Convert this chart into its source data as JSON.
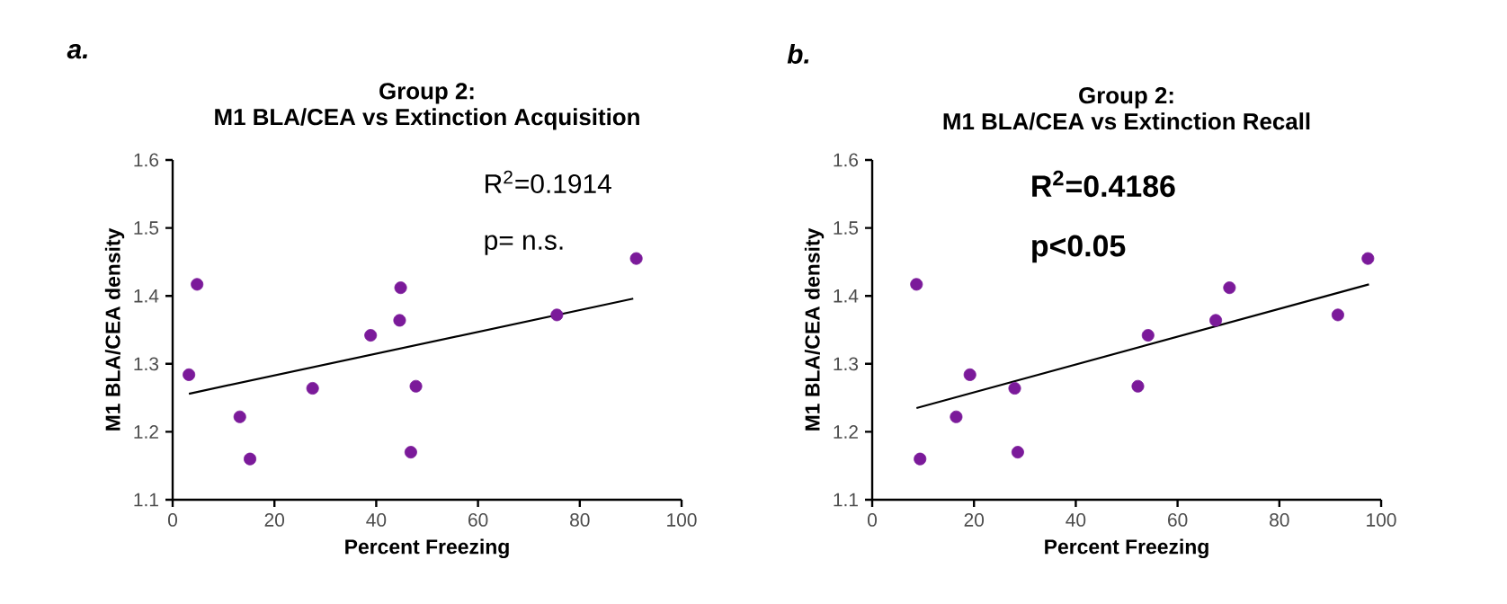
{
  "chart_data": [
    {
      "type": "scatter",
      "title": "Group 2:",
      "subtitle": "M1 BLA/CEA vs Extinction Acquisition",
      "xlabel": "Percent Freezing",
      "ylabel": "M1 BLA/CEA density",
      "annotations": [
        "a.",
        "R$^{2}$=0.1914",
        "p= n.s."
      ],
      "marker": "circle",
      "xlim": [
        0,
        100
      ],
      "ylim": [
        1.1,
        1.6
      ],
      "xticks": [
        0,
        20,
        40,
        60,
        80,
        100
      ],
      "yticks": [
        1.1,
        1.2,
        1.3,
        1.4,
        1.5,
        1.6
      ],
      "series": [
        {
          "color": "#7b1a9a",
          "x": [
            3.2,
            4.8,
            13.2,
            15.2,
            27.5,
            38.9,
            44.6,
            44.8,
            47.8,
            46.8,
            75.5,
            91.1
          ],
          "values": [
            1.284,
            1.417,
            1.222,
            1.16,
            1.264,
            1.342,
            1.364,
            1.412,
            1.267,
            1.17,
            1.372,
            1.455
          ]
        },
        {
          "type": "line",
          "marker": "none",
          "color": "#000000",
          "x": [
            3.2,
            90.5
          ],
          "values": [
            1.256,
            1.396
          ]
        }
      ]
    },
    {
      "type": "scatter",
      "title": "Group 2:",
      "subtitle": "M1 BLA/CEA vs Extinction Recall",
      "xlabel": "Percent Freezing",
      "ylabel": "M1 BLA/CEA density",
      "annotations": [
        "b.",
        "R$^{2}$=0.4186",
        "p<0.05"
      ],
      "marker": "circle",
      "xlim": [
        0,
        100
      ],
      "ylim": [
        1.1,
        1.6
      ],
      "xticks": [
        0,
        20,
        40,
        60,
        80,
        100
      ],
      "yticks": [
        1.1,
        1.2,
        1.3,
        1.4,
        1.5,
        1.6
      ],
      "series": [
        {
          "color": "#7b1a9a",
          "x": [
            8.7,
            9.4,
            16.5,
            19.2,
            28.0,
            28.6,
            52.2,
            54.2,
            67.5,
            70.2,
            91.5,
            97.4
          ],
          "values": [
            1.417,
            1.16,
            1.222,
            1.284,
            1.264,
            1.17,
            1.267,
            1.342,
            1.364,
            1.412,
            1.372,
            1.455
          ]
        },
        {
          "type": "line",
          "marker": "none",
          "color": "#000000",
          "x": [
            8.7,
            97.6
          ],
          "values": [
            1.235,
            1.417
          ]
        }
      ]
    }
  ]
}
